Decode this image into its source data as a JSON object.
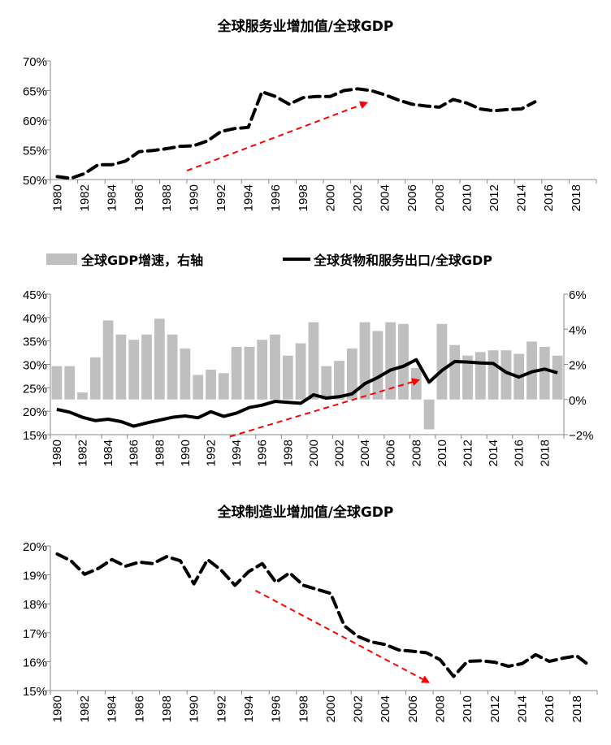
{
  "chart_data": [
    {
      "type": "line",
      "title": "全球服务业增加值/全球GDP",
      "x": [
        1980,
        1981,
        1982,
        1983,
        1984,
        1985,
        1986,
        1987,
        1988,
        1989,
        1990,
        1991,
        1992,
        1993,
        1994,
        1995,
        1996,
        1997,
        1998,
        1999,
        2000,
        2001,
        2002,
        2003,
        2004,
        2005,
        2006,
        2007,
        2008,
        2009,
        2010,
        2011,
        2012,
        2013,
        2014,
        2015
      ],
      "x_categories": "1980-2019",
      "x_tick_labels": [
        "1980",
        "1982",
        "1984",
        "1986",
        "1988",
        "1990",
        "1992",
        "1994",
        "1996",
        "1998",
        "2000",
        "2002",
        "2004",
        "2006",
        "2008",
        "2010",
        "2012",
        "2014",
        "2016",
        "2018"
      ],
      "y_tick_labels": [
        "50%",
        "55%",
        "60%",
        "65%",
        "70%"
      ],
      "ylim": [
        50,
        70
      ],
      "y_unit": "%",
      "series": [
        {
          "values": [
            50.5,
            50.2,
            51.0,
            52.5,
            52.5,
            53.1,
            54.7,
            54.9,
            55.2,
            55.6,
            55.7,
            56.5,
            58.1,
            58.6,
            58.8,
            64.8,
            64.0,
            62.7,
            63.8,
            64.0,
            64.0,
            65.0,
            65.3,
            65.0,
            64.3,
            63.4,
            62.7,
            62.4,
            62.2,
            63.5,
            62.9,
            61.9,
            61.6,
            61.8,
            61.9,
            63.1
          ],
          "color": "#000000",
          "style": "dashed"
        }
      ],
      "annotations": [
        {
          "type": "arrow",
          "color": "#ff0000",
          "style": "dashed",
          "from": [
            1989.5,
            51.5
          ],
          "to": [
            2002.5,
            62.8
          ]
        }
      ],
      "grid": false
    },
    {
      "type": "bar+line",
      "x_categories": [
        1980,
        1981,
        1982,
        1983,
        1984,
        1985,
        1986,
        1987,
        1988,
        1989,
        1990,
        1991,
        1992,
        1993,
        1994,
        1995,
        1996,
        1997,
        1998,
        1999,
        2000,
        2001,
        2002,
        2003,
        2004,
        2005,
        2006,
        2007,
        2008,
        2009,
        2010,
        2011,
        2012,
        2013,
        2014,
        2015,
        2016,
        2017,
        2018,
        2019
      ],
      "x_tick_labels": [
        "1980",
        "1982",
        "1984",
        "1986",
        "1988",
        "1990",
        "1992",
        "1994",
        "1996",
        "1998",
        "2000",
        "2002",
        "2004",
        "2006",
        "2008",
        "2010",
        "2012",
        "2014",
        "2016",
        "2018"
      ],
      "y_tick_labels": [
        "15%",
        "20%",
        "25%",
        "30%",
        "35%",
        "40%",
        "45%"
      ],
      "y2_tick_labels": [
        "−2%",
        "0%",
        "2%",
        "4%",
        "6%"
      ],
      "ylim": [
        15,
        45
      ],
      "y2lim": [
        -2,
        6
      ],
      "legend_position": "top",
      "series": [
        {
          "name": "全球GDP增速，右轴",
          "type": "bar",
          "axis": "right",
          "color": "#bfbfbf",
          "values": [
            1.9,
            1.9,
            0.4,
            2.4,
            4.5,
            3.7,
            3.4,
            3.7,
            4.6,
            3.7,
            2.9,
            1.4,
            1.7,
            1.5,
            3.0,
            3.0,
            3.4,
            3.7,
            2.5,
            3.2,
            4.4,
            1.9,
            2.2,
            2.9,
            4.4,
            3.9,
            4.4,
            4.3,
            1.8,
            -1.7,
            4.3,
            3.1,
            2.5,
            2.7,
            2.8,
            2.8,
            2.6,
            3.3,
            3.0,
            2.5
          ]
        },
        {
          "name": "全球货物和服务出口/全球GDP",
          "type": "line",
          "axis": "left",
          "color": "#000000",
          "values": [
            20.4,
            19.8,
            18.7,
            18.0,
            18.3,
            17.8,
            16.8,
            17.5,
            18.1,
            18.7,
            19.0,
            18.6,
            19.9,
            18.9,
            19.6,
            20.8,
            21.3,
            22.1,
            21.9,
            21.7,
            23.5,
            22.8,
            23.1,
            23.7,
            25.9,
            27.2,
            28.8,
            29.6,
            31.0,
            26.2,
            28.7,
            30.6,
            30.5,
            30.3,
            30.2,
            28.3,
            27.3,
            28.4,
            29.0,
            28.2
          ]
        }
      ],
      "annotations": [
        {
          "type": "arrow",
          "color": "#ff0000",
          "style": "dashed",
          "from": [
            1993.5,
            14.6
          ],
          "to": [
            2008.0,
            26.5
          ]
        }
      ],
      "grid": false
    },
    {
      "type": "line",
      "title": "全球制造业增加值/全球GDP",
      "x": [
        1980,
        1981,
        1982,
        1983,
        1984,
        1985,
        1986,
        1987,
        1988,
        1989,
        1990,
        1991,
        1992,
        1993,
        1994,
        1995,
        1996,
        1997,
        1998,
        1999,
        2000,
        2001,
        2002,
        2003,
        2004,
        2005,
        2006,
        2007,
        2008,
        2009,
        2010,
        2011,
        2012,
        2013,
        2014,
        2015,
        2016,
        2017,
        2018,
        2019
      ],
      "x_tick_labels": [
        "1980",
        "1982",
        "1984",
        "1986",
        "1988",
        "1990",
        "1992",
        "1994",
        "1996",
        "1998",
        "2000",
        "2002",
        "2004",
        "2006",
        "2008",
        "2010",
        "2012",
        "2014",
        "2016",
        "2018"
      ],
      "y_tick_labels": [
        "15%",
        "16%",
        "17%",
        "18%",
        "19%",
        "20%"
      ],
      "ylim": [
        15,
        20
      ],
      "series": [
        {
          "values": [
            19.72,
            19.49,
            19.02,
            19.22,
            19.53,
            19.3,
            19.44,
            19.39,
            19.63,
            19.49,
            18.69,
            19.53,
            19.16,
            18.64,
            19.11,
            19.39,
            18.74,
            19.07,
            18.64,
            18.5,
            18.36,
            17.24,
            16.87,
            16.68,
            16.59,
            16.4,
            16.36,
            16.31,
            16.07,
            15.49,
            16.01,
            16.03,
            15.98,
            15.84,
            15.93,
            16.24,
            16.01,
            16.12,
            16.2,
            15.84
          ],
          "color": "#000000",
          "style": "dashed"
        }
      ],
      "annotations": [
        {
          "type": "arrow",
          "color": "#ff0000",
          "style": "dashed",
          "from": [
            1994.5,
            18.46
          ],
          "to": [
            2007.0,
            15.33
          ]
        }
      ],
      "grid": false
    }
  ]
}
